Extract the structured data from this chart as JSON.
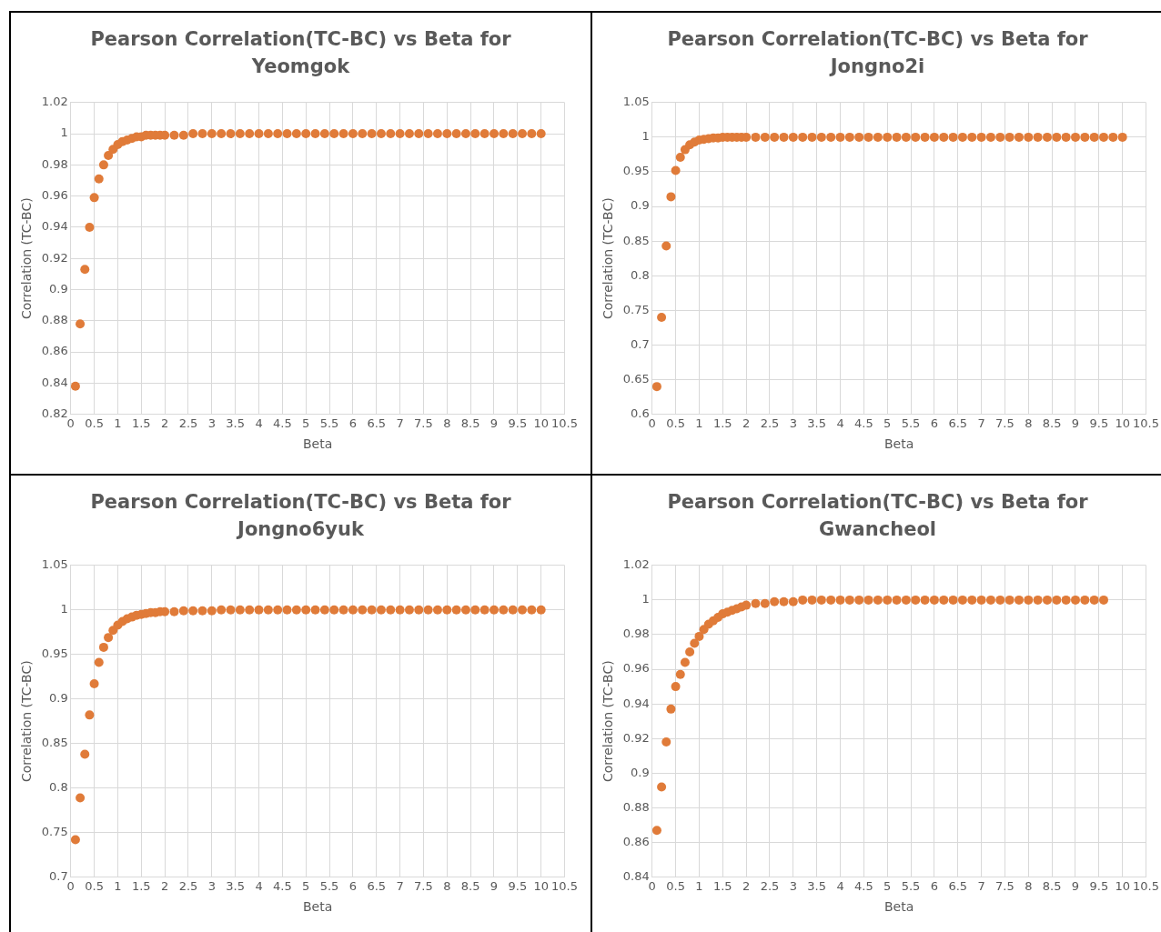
{
  "chart_data": [
    {
      "type": "scatter",
      "title": "Pearson Correlation(TC-BC) vs Beta for Yeomgok",
      "xlabel": "Beta",
      "ylabel": "Correlation (TC-BC)",
      "marker": "circle",
      "grid": true,
      "legend": false,
      "xlim": [
        0,
        10.5
      ],
      "xticks": [
        0,
        0.5,
        1,
        1.5,
        2,
        2.5,
        3,
        3.5,
        4,
        4.5,
        5,
        5.5,
        6,
        6.5,
        7,
        7.5,
        8,
        8.5,
        9,
        9.5,
        10,
        10.5
      ],
      "ylim": [
        0.82,
        1.02
      ],
      "yticks": [
        0.82,
        0.84,
        0.86,
        0.88,
        0.9,
        0.92,
        0.94,
        0.96,
        0.98,
        1,
        1.02
      ],
      "series": [
        {
          "color": "#e07b39",
          "x": [
            0.1,
            0.2,
            0.3,
            0.4,
            0.5,
            0.6,
            0.7,
            0.8,
            0.9,
            1,
            1.1,
            1.2,
            1.3,
            1.4,
            1.5,
            1.6,
            1.7,
            1.8,
            1.9,
            2,
            2.2,
            2.4,
            2.6,
            2.8,
            3,
            3.2,
            3.4,
            3.6,
            3.8,
            4,
            4.2,
            4.4,
            4.6,
            4.8,
            5,
            5.2,
            5.4,
            5.6,
            5.8,
            6,
            6.2,
            6.4,
            6.6,
            6.8,
            7,
            7.2,
            7.4,
            7.6,
            7.8,
            8,
            8.2,
            8.4,
            8.6,
            8.8,
            9,
            9.2,
            9.4,
            9.6,
            9.8,
            10
          ],
          "values": [
            0.838,
            0.878,
            0.913,
            0.94,
            0.959,
            0.971,
            0.98,
            0.986,
            0.99,
            0.993,
            0.995,
            0.996,
            0.997,
            0.998,
            0.998,
            0.999,
            0.999,
            0.999,
            0.999,
            0.999,
            0.999,
            0.999,
            1,
            1,
            1,
            1,
            1,
            1,
            1,
            1,
            1,
            1,
            1,
            1,
            1,
            1,
            1,
            1,
            1,
            1,
            1,
            1,
            1,
            1,
            1,
            1,
            1,
            1,
            1,
            1,
            1,
            1,
            1,
            1,
            1,
            1,
            1,
            1,
            1,
            1
          ]
        }
      ]
    },
    {
      "type": "scatter",
      "title": "Pearson Correlation(TC-BC) vs Beta for Jongno2i",
      "xlabel": "Beta",
      "ylabel": "Correlation (TC-BC)",
      "marker": "circle",
      "grid": true,
      "legend": false,
      "xlim": [
        0,
        10.5
      ],
      "xticks": [
        0,
        0.5,
        1,
        1.5,
        2,
        2.5,
        3,
        3.5,
        4,
        4.5,
        5,
        5.5,
        6,
        6.5,
        7,
        7.5,
        8,
        8.5,
        9,
        9.5,
        10,
        10.5
      ],
      "ylim": [
        0.6,
        1.05
      ],
      "yticks": [
        0.6,
        0.65,
        0.7,
        0.75,
        0.8,
        0.85,
        0.9,
        0.95,
        1,
        1.05
      ],
      "series": [
        {
          "color": "#e07b39",
          "x": [
            0.1,
            0.2,
            0.3,
            0.4,
            0.5,
            0.6,
            0.7,
            0.8,
            0.9,
            1,
            1.1,
            1.2,
            1.3,
            1.4,
            1.5,
            1.6,
            1.7,
            1.8,
            1.9,
            2,
            2.2,
            2.4,
            2.6,
            2.8,
            3,
            3.2,
            3.4,
            3.6,
            3.8,
            4,
            4.2,
            4.4,
            4.6,
            4.8,
            5,
            5.2,
            5.4,
            5.6,
            5.8,
            6,
            6.2,
            6.4,
            6.6,
            6.8,
            7,
            7.2,
            7.4,
            7.6,
            7.8,
            8,
            8.2,
            8.4,
            8.6,
            8.8,
            9,
            9.2,
            9.4,
            9.6,
            9.8,
            10
          ],
          "values": [
            0.64,
            0.74,
            0.843,
            0.914,
            0.952,
            0.971,
            0.982,
            0.989,
            0.993,
            0.996,
            0.997,
            0.998,
            0.999,
            0.999,
            1,
            1,
            1,
            1,
            1,
            1,
            1,
            1,
            1,
            1,
            1,
            1,
            1,
            1,
            1,
            1,
            1,
            1,
            1,
            1,
            1,
            1,
            1,
            1,
            1,
            1,
            1,
            1,
            1,
            1,
            1,
            1,
            1,
            1,
            1,
            1,
            1,
            1,
            1,
            1,
            1,
            1,
            1,
            1,
            1,
            1
          ]
        }
      ]
    },
    {
      "type": "scatter",
      "title": "Pearson Correlation(TC-BC) vs Beta for Jongno6yuk",
      "xlabel": "Beta",
      "ylabel": "Correlation (TC-BC)",
      "marker": "circle",
      "grid": true,
      "legend": false,
      "xlim": [
        0,
        10.5
      ],
      "xticks": [
        0,
        0.5,
        1,
        1.5,
        2,
        2.5,
        3,
        3.5,
        4,
        4.5,
        5,
        5.5,
        6,
        6.5,
        7,
        7.5,
        8,
        8.5,
        9,
        9.5,
        10,
        10.5
      ],
      "ylim": [
        0.7,
        1.05
      ],
      "yticks": [
        0.7,
        0.75,
        0.8,
        0.85,
        0.9,
        0.95,
        1,
        1.05
      ],
      "series": [
        {
          "color": "#e07b39",
          "x": [
            0.1,
            0.2,
            0.3,
            0.4,
            0.5,
            0.6,
            0.7,
            0.8,
            0.9,
            1,
            1.1,
            1.2,
            1.3,
            1.4,
            1.5,
            1.6,
            1.7,
            1.8,
            1.9,
            2,
            2.2,
            2.4,
            2.6,
            2.8,
            3,
            3.2,
            3.4,
            3.6,
            3.8,
            4,
            4.2,
            4.4,
            4.6,
            4.8,
            5,
            5.2,
            5.4,
            5.6,
            5.8,
            6,
            6.2,
            6.4,
            6.6,
            6.8,
            7,
            7.2,
            7.4,
            7.6,
            7.8,
            8,
            8.2,
            8.4,
            8.6,
            8.8,
            9,
            9.2,
            9.4,
            9.6,
            9.8,
            10
          ],
          "values": [
            0.742,
            0.789,
            0.838,
            0.882,
            0.917,
            0.941,
            0.958,
            0.969,
            0.977,
            0.983,
            0.987,
            0.99,
            0.992,
            0.994,
            0.995,
            0.996,
            0.997,
            0.997,
            0.998,
            0.998,
            0.998,
            0.999,
            0.999,
            0.999,
            0.999,
            1,
            1,
            1,
            1,
            1,
            1,
            1,
            1,
            1,
            1,
            1,
            1,
            1,
            1,
            1,
            1,
            1,
            1,
            1,
            1,
            1,
            1,
            1,
            1,
            1,
            1,
            1,
            1,
            1,
            1,
            1,
            1,
            1,
            1,
            1
          ]
        }
      ]
    },
    {
      "type": "scatter",
      "title": "Pearson Correlation(TC-BC) vs Beta for Gwancheol",
      "xlabel": "Beta",
      "ylabel": "Correlation (TC-BC)",
      "marker": "circle",
      "grid": true,
      "legend": false,
      "xlim": [
        0,
        10.5
      ],
      "xticks": [
        0,
        0.5,
        1,
        1.5,
        2,
        2.5,
        3,
        3.5,
        4,
        4.5,
        5,
        5.5,
        6,
        6.5,
        7,
        7.5,
        8,
        8.5,
        9,
        9.5,
        10,
        10.5
      ],
      "ylim": [
        0.84,
        1.02
      ],
      "yticks": [
        0.84,
        0.86,
        0.88,
        0.9,
        0.92,
        0.94,
        0.96,
        0.98,
        1,
        1.02
      ],
      "series": [
        {
          "color": "#e07b39",
          "x": [
            0.1,
            0.2,
            0.3,
            0.4,
            0.5,
            0.6,
            0.7,
            0.8,
            0.9,
            1,
            1.1,
            1.2,
            1.3,
            1.4,
            1.5,
            1.6,
            1.7,
            1.8,
            1.9,
            2,
            2.2,
            2.4,
            2.6,
            2.8,
            3,
            3.2,
            3.4,
            3.6,
            3.8,
            4,
            4.2,
            4.4,
            4.6,
            4.8,
            5,
            5.2,
            5.4,
            5.6,
            5.8,
            6,
            6.2,
            6.4,
            6.6,
            6.8,
            7,
            7.2,
            7.4,
            7.6,
            7.8,
            8,
            8.2,
            8.4,
            8.6,
            8.8,
            9,
            9.2,
            9.4,
            9.6
          ],
          "values": [
            0.867,
            0.892,
            0.918,
            0.937,
            0.95,
            0.957,
            0.964,
            0.97,
            0.975,
            0.979,
            0.983,
            0.986,
            0.988,
            0.99,
            0.992,
            0.993,
            0.994,
            0.995,
            0.996,
            0.997,
            0.998,
            0.998,
            0.999,
            0.999,
            0.999,
            1,
            1,
            1,
            1,
            1,
            1,
            1,
            1,
            1,
            1,
            1,
            1,
            1,
            1,
            1,
            1,
            1,
            1,
            1,
            1,
            1,
            1,
            1,
            1,
            1,
            1,
            1,
            1,
            1,
            1,
            1,
            1,
            1
          ]
        }
      ]
    }
  ]
}
